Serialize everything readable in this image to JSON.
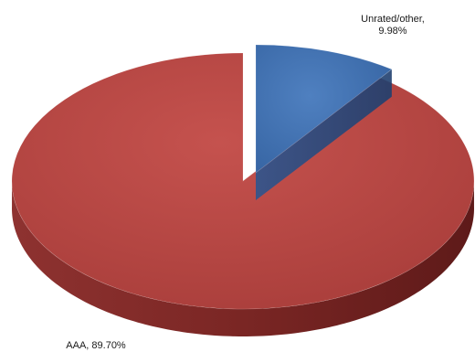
{
  "chart_data": {
    "type": "pie",
    "style": "3d-exploded",
    "slices": [
      {
        "label": "Unrated/other",
        "value": 9.98,
        "color": "#3F6FAF",
        "side": "#264B7F",
        "top_text": "Unrated/other,",
        "bottom_text": "9.98%"
      },
      {
        "label": "AAA",
        "value": 89.7,
        "color": "#B84844",
        "side": "#7E2624",
        "top_text": "AAA, 89.70%"
      }
    ]
  }
}
